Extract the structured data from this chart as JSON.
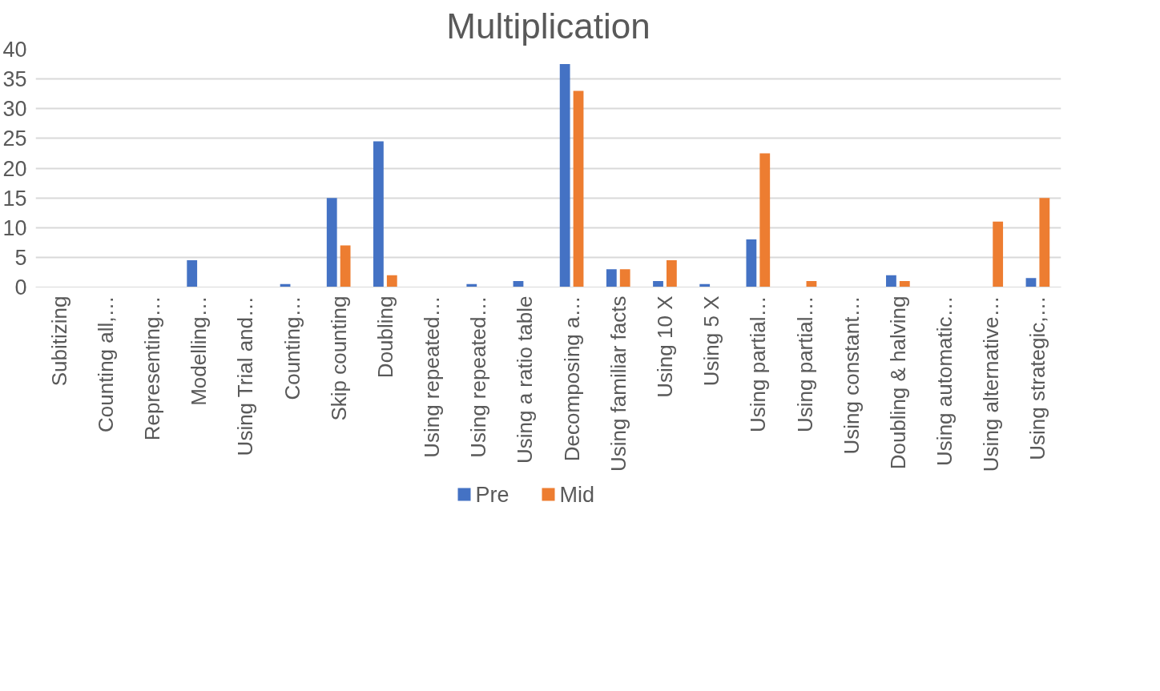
{
  "chart_data": {
    "type": "bar",
    "title": "Multiplication",
    "categories": [
      "Subitizing",
      "Counting all,…",
      "Representing…",
      "Modelling…",
      "Using Trial and…",
      "Counting…",
      "Skip counting",
      "Doubling",
      "Using repeated…",
      "Using repeated…",
      "Using a ratio table",
      "Decomposing a…",
      "Using familiar facts",
      "Using 10 X",
      "Using 5 X",
      "Using partial…",
      "Using partial…",
      "Using constant…",
      "Doubling & halving",
      "Using automatic…",
      "Using alternative…",
      "Using strategic,…"
    ],
    "series": [
      {
        "name": "Pre",
        "color": "#4472c4",
        "values": [
          0,
          0,
          0,
          4.5,
          0,
          0.5,
          15,
          24.5,
          0,
          0.5,
          1,
          37.5,
          3,
          1,
          0.5,
          8,
          0,
          0,
          2,
          0,
          0,
          1.5
        ]
      },
      {
        "name": "Mid",
        "color": "#ed7d31",
        "values": [
          0,
          0,
          0,
          0,
          0,
          0,
          7,
          2,
          0,
          0,
          0,
          33,
          3,
          4.5,
          0,
          22.5,
          1,
          0,
          1,
          0,
          11,
          15
        ]
      }
    ],
    "ylim": [
      0,
      40
    ],
    "yticks": [
      0,
      5,
      10,
      15,
      20,
      25,
      30,
      35,
      40
    ],
    "grid": "y",
    "legend": "bottom"
  }
}
